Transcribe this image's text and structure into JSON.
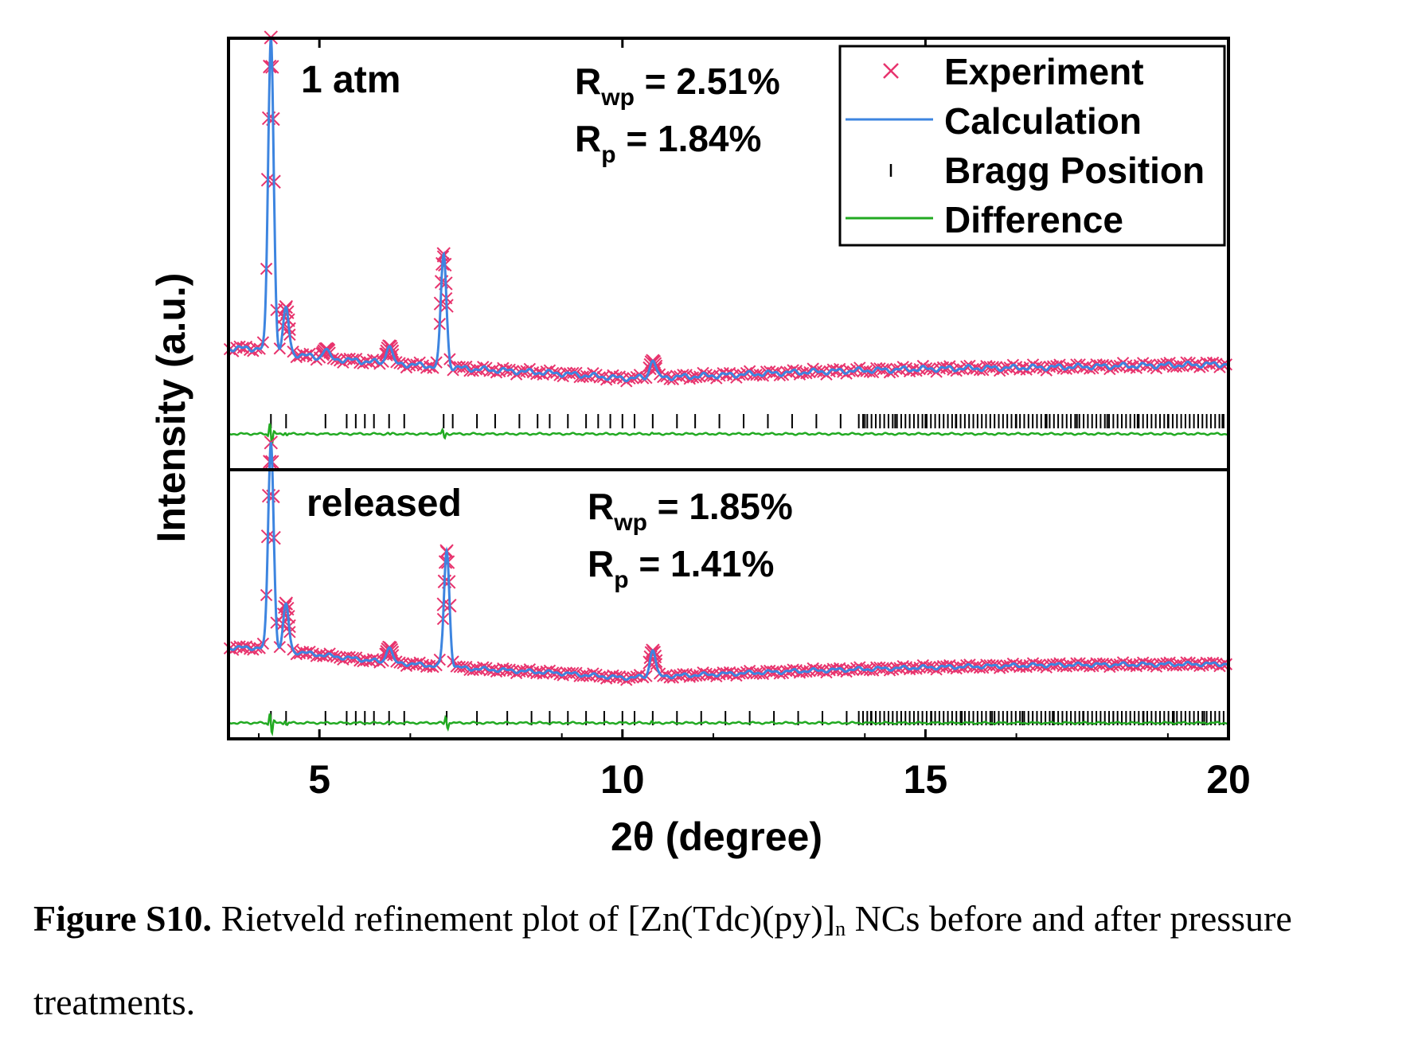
{
  "chart_data": {
    "type": "line",
    "xlabel": "2θ (degree)",
    "ylabel": "Intensity (a.u.)",
    "xlim": [
      3.5,
      20
    ],
    "x_ticks": [
      "5",
      "10",
      "15",
      "20"
    ],
    "legend": {
      "placement": "top-right",
      "entries": [
        {
          "label": "Experiment",
          "marker": "x",
          "color": "#e8336d"
        },
        {
          "label": "Calculation",
          "marker": "line",
          "color": "#3d85e0"
        },
        {
          "label": "Bragg Position",
          "marker": "tick",
          "color": "#000000"
        },
        {
          "label": "Difference",
          "marker": "line",
          "color": "#22aa22"
        }
      ]
    },
    "panels": [
      {
        "label": "1 atm",
        "rwp_label": "R",
        "rwp_sub": "wp",
        "rwp_value": " = 2.51%",
        "rp_label": "R",
        "rp_sub": "p",
        "rp_value": " = 1.84%",
        "background": [
          [
            3.5,
            0.12
          ],
          [
            4.0,
            0.12
          ],
          [
            5.0,
            0.09
          ],
          [
            6.0,
            0.075
          ],
          [
            7.5,
            0.055
          ],
          [
            9.0,
            0.04
          ],
          [
            10.0,
            0.025
          ],
          [
            11.0,
            0.03
          ],
          [
            13.0,
            0.045
          ],
          [
            15.0,
            0.055
          ],
          [
            17.0,
            0.06
          ],
          [
            20.0,
            0.07
          ]
        ],
        "peaks": [
          [
            4.2,
            1.0
          ],
          [
            4.45,
            0.14
          ],
          [
            5.1,
            0.03
          ],
          [
            6.15,
            0.06
          ],
          [
            7.05,
            0.36
          ],
          [
            10.5,
            0.06
          ]
        ],
        "bragg_positions": [
          4.2,
          4.45,
          5.1,
          5.45,
          5.6,
          5.75,
          5.9,
          6.15,
          6.4,
          7.05,
          7.2,
          7.6,
          7.9,
          8.3,
          8.6,
          8.8,
          9.1,
          9.4,
          9.6,
          9.8,
          10.0,
          10.2,
          10.5,
          10.9,
          11.2,
          11.6,
          12.0,
          12.4,
          12.8,
          13.2,
          13.6,
          14.0,
          14.5,
          15.0,
          15.5,
          16.0,
          16.5,
          17.0,
          17.5,
          18.0,
          18.5,
          19.0,
          19.5,
          19.9
        ]
      },
      {
        "label": "released",
        "rwp_label": "R",
        "rwp_sub": "wp",
        "rwp_value": " = 1.85%",
        "rp_label": "R",
        "rp_sub": "p",
        "rp_value": " = 1.41%",
        "background": [
          [
            3.5,
            0.16
          ],
          [
            4.0,
            0.16
          ],
          [
            5.0,
            0.13
          ],
          [
            6.0,
            0.1
          ],
          [
            7.5,
            0.07
          ],
          [
            9.0,
            0.05
          ],
          [
            10.0,
            0.03
          ],
          [
            11.0,
            0.04
          ],
          [
            13.0,
            0.06
          ],
          [
            15.0,
            0.075
          ],
          [
            17.0,
            0.085
          ],
          [
            20.0,
            0.09
          ]
        ],
        "peaks": [
          [
            4.2,
            0.9
          ],
          [
            4.45,
            0.2
          ],
          [
            6.15,
            0.07
          ],
          [
            7.1,
            0.5
          ],
          [
            10.5,
            0.12
          ]
        ],
        "bragg_positions": [
          4.2,
          4.45,
          5.1,
          5.45,
          5.6,
          5.75,
          5.9,
          6.15,
          6.4,
          7.1,
          7.6,
          8.1,
          8.5,
          8.8,
          9.1,
          9.4,
          9.7,
          10.0,
          10.2,
          10.5,
          10.9,
          11.3,
          11.7,
          12.1,
          12.5,
          12.9,
          13.3,
          13.7,
          14.1,
          14.6,
          15.1,
          15.6,
          16.1,
          16.6,
          17.1,
          17.6,
          18.1,
          18.6,
          19.1,
          19.6
        ]
      }
    ]
  },
  "caption": {
    "bold": "Figure S10.",
    "text_before_sub": " Rietveld refinement plot of [Zn(Tdc)(py)]",
    "sub": "n",
    "text_after_sub": " NCs before and after pressure treatments."
  },
  "colors": {
    "experiment": "#e8336d",
    "calculation": "#3d85e0",
    "bragg": "#000000",
    "difference": "#22aa22"
  }
}
